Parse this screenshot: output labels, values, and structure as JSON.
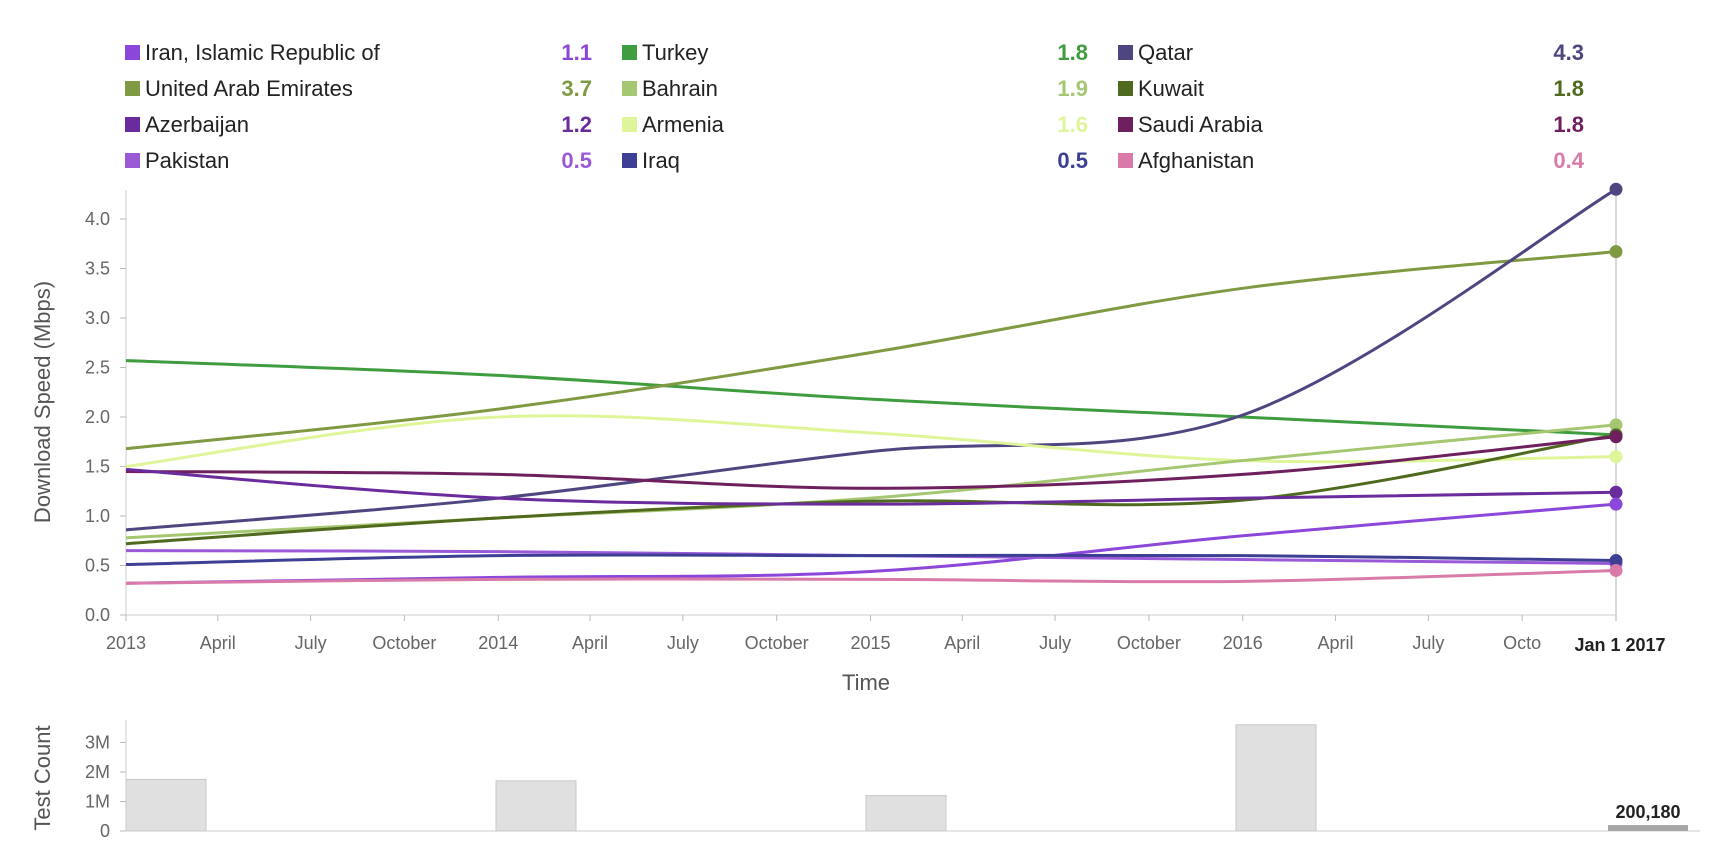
{
  "legend": [
    {
      "name": "Iran, Islamic Republic of",
      "value": "1.1",
      "color": "#8b47d9"
    },
    {
      "name": "Turkey",
      "value": "1.8",
      "color": "#3f9c3f"
    },
    {
      "name": "Qatar",
      "value": "4.3",
      "color": "#4e4680"
    },
    {
      "name": "United Arab Emirates",
      "value": "3.7",
      "color": "#7f9a42"
    },
    {
      "name": "Bahrain",
      "value": "1.9",
      "color": "#a5c772"
    },
    {
      "name": "Kuwait",
      "value": "1.8",
      "color": "#4f6a1e"
    },
    {
      "name": "Azerbaijan",
      "value": "1.2",
      "color": "#6a2b9c"
    },
    {
      "name": "Armenia",
      "value": "1.6",
      "color": "#dff59a"
    },
    {
      "name": "Saudi Arabia",
      "value": "1.8",
      "color": "#6e1f5e"
    },
    {
      "name": "Pakistan",
      "value": "0.5",
      "color": "#9a5ad8"
    },
    {
      "name": "Iraq",
      "value": "0.5",
      "color": "#3c3f94"
    },
    {
      "name": "Afghanistan",
      "value": "0.4",
      "color": "#d97aa8"
    }
  ],
  "chart_data": [
    {
      "type": "line",
      "xlabel": "Time",
      "ylabel": "Download Speed (Mbps)",
      "ylim": [
        0,
        4.3
      ],
      "yticks": [
        0.0,
        0.5,
        1.0,
        1.5,
        2.0,
        2.5,
        3.0,
        3.5,
        4.0
      ],
      "ytick_labels": [
        "0.0",
        "0.5",
        "1.0",
        "1.5",
        "2.0",
        "2.5",
        "3.0",
        "3.5",
        "4.0"
      ],
      "xlim": [
        "2013-01-01",
        "2017-01-01"
      ],
      "xticks": [
        {
          "date": "2013-01-01",
          "label": "2013"
        },
        {
          "date": "2013-04-01",
          "label": "April"
        },
        {
          "date": "2013-07-01",
          "label": "July"
        },
        {
          "date": "2013-10-01",
          "label": "October"
        },
        {
          "date": "2014-01-01",
          "label": "2014"
        },
        {
          "date": "2014-04-01",
          "label": "April"
        },
        {
          "date": "2014-07-01",
          "label": "July"
        },
        {
          "date": "2014-10-01",
          "label": "October"
        },
        {
          "date": "2015-01-01",
          "label": "2015"
        },
        {
          "date": "2015-04-01",
          "label": "April"
        },
        {
          "date": "2015-07-01",
          "label": "July"
        },
        {
          "date": "2015-10-01",
          "label": "October"
        },
        {
          "date": "2016-01-01",
          "label": "2016"
        },
        {
          "date": "2016-04-01",
          "label": "April"
        },
        {
          "date": "2016-07-01",
          "label": "July"
        },
        {
          "date": "2016-10-01",
          "label": "Octo"
        }
      ],
      "highlight_label": "Jan 1 2017",
      "x": [
        "2013-01-01",
        "2014-01-01",
        "2015-01-01",
        "2016-01-01",
        "2017-01-01"
      ],
      "series": [
        {
          "name": "Turkey",
          "color": "#3f9c3f",
          "values": [
            2.57,
            2.42,
            2.18,
            2.0,
            1.82
          ]
        },
        {
          "name": "United Arab Emirates",
          "color": "#7f9a42",
          "values": [
            1.68,
            2.08,
            2.65,
            3.3,
            3.67
          ]
        },
        {
          "name": "Qatar",
          "color": "#4e4680",
          "values": [
            0.86,
            1.18,
            1.65,
            2.02,
            4.3
          ]
        },
        {
          "name": "Armenia",
          "color": "#dff59a",
          "values": [
            1.5,
            2.0,
            1.84,
            1.56,
            1.6
          ]
        },
        {
          "name": "Bahrain",
          "color": "#a5c772",
          "values": [
            0.78,
            0.98,
            1.18,
            1.56,
            1.92
          ]
        },
        {
          "name": "Kuwait",
          "color": "#4f6a1e",
          "values": [
            0.72,
            0.98,
            1.15,
            1.16,
            1.82
          ]
        },
        {
          "name": "Saudi Arabia",
          "color": "#6e1f5e",
          "values": [
            1.45,
            1.42,
            1.28,
            1.42,
            1.8
          ]
        },
        {
          "name": "Azerbaijan",
          "color": "#6a2b9c",
          "values": [
            1.47,
            1.18,
            1.12,
            1.18,
            1.24
          ]
        },
        {
          "name": "Iran, Islamic Republic of",
          "color": "#8b47d9",
          "values": [
            0.32,
            0.38,
            0.44,
            0.8,
            1.12
          ]
        },
        {
          "name": "Pakistan",
          "color": "#9a5ad8",
          "values": [
            0.65,
            0.64,
            0.6,
            0.56,
            0.52
          ]
        },
        {
          "name": "Iraq",
          "color": "#3c3f94",
          "values": [
            0.51,
            0.6,
            0.6,
            0.6,
            0.55
          ]
        },
        {
          "name": "Afghanistan",
          "color": "#d97aa8",
          "values": [
            0.32,
            0.36,
            0.36,
            0.34,
            0.45
          ]
        }
      ]
    },
    {
      "type": "bar",
      "ylabel": "Test Count",
      "ylim": [
        0,
        3600000
      ],
      "yticks": [
        0,
        1000000,
        2000000,
        3000000
      ],
      "ytick_labels": [
        "0",
        "1M",
        "2M",
        "3M"
      ],
      "categories": [
        "2013",
        "2014",
        "2015",
        "2016",
        "2017"
      ],
      "values": [
        1750000,
        1700000,
        1200000,
        3600000,
        200180
      ],
      "bar_color": "#e0e0e0",
      "highlight_color": "#a6a6a6",
      "highlight_value_label": "200,180"
    }
  ]
}
